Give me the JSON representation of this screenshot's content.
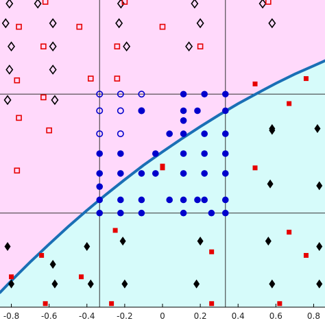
{
  "chart_data": {
    "type": "scatter",
    "xlim": [
      -0.86,
      0.86
    ],
    "ylim": [
      -0.86,
      0.86
    ],
    "x_ticks": [
      -0.8,
      -0.6,
      -0.4,
      -0.2,
      0,
      0.2,
      0.4,
      0.6,
      0.8
    ],
    "x_tick_labels": [
      "-0.8",
      "-0.6",
      "-0.4",
      "-0.2",
      "0",
      "0.2",
      "0.4",
      "0.6",
      "0.8"
    ],
    "grid_x": [
      -0.333,
      0.333
    ],
    "grid_y": [
      -0.333,
      0.333
    ],
    "grid": "partial",
    "colors": {
      "upper_region": "#ffd9fb",
      "lower_region": "#d6fbfa",
      "boundary": "#1a6fb5",
      "red": "#e60000",
      "blue": "#0000cc",
      "black": "#000000",
      "grid": "#333333"
    },
    "boundary": {
      "points": [
        [
          -0.86,
          -0.778
        ],
        [
          -0.8,
          -0.712
        ],
        [
          -0.7,
          -0.607
        ],
        [
          -0.6,
          -0.507
        ],
        [
          -0.5,
          -0.41
        ],
        [
          -0.4,
          -0.318
        ],
        [
          -0.3,
          -0.23
        ],
        [
          -0.2,
          -0.146
        ],
        [
          -0.1,
          -0.065
        ],
        [
          0,
          0.01
        ],
        [
          0.1,
          0.082
        ],
        [
          0.2,
          0.151
        ],
        [
          0.3,
          0.217
        ],
        [
          0.4,
          0.279
        ],
        [
          0.5,
          0.337
        ],
        [
          0.6,
          0.393
        ],
        [
          0.7,
          0.445
        ],
        [
          0.8,
          0.492
        ],
        [
          0.86,
          0.52
        ]
      ]
    },
    "series": [
      {
        "marker": "diamond-open",
        "color": "#000000",
        "points": [
          [
            -0.81,
            0.84
          ],
          [
            -0.83,
            0.73
          ],
          [
            -0.8,
            0.6
          ],
          [
            -0.81,
            0.47
          ],
          [
            -0.82,
            0.3
          ],
          [
            -0.66,
            0.84
          ],
          [
            -0.58,
            0.73
          ],
          [
            -0.58,
            0.6
          ],
          [
            -0.58,
            0.47
          ],
          [
            -0.57,
            0.3
          ],
          [
            -0.22,
            0.84
          ],
          [
            -0.23,
            0.73
          ],
          [
            -0.19,
            0.6
          ],
          [
            0.17,
            0.84
          ],
          [
            0.2,
            0.73
          ],
          [
            0.14,
            0.6
          ],
          [
            0.53,
            0.84
          ],
          [
            0.58,
            0.73
          ]
        ]
      },
      {
        "marker": "square-open",
        "color": "#e60000",
        "points": [
          [
            -0.76,
            0.71
          ],
          [
            -0.77,
            0.41
          ],
          [
            -0.76,
            0.2
          ],
          [
            -0.77,
            -0.095
          ],
          [
            -0.62,
            0.85
          ],
          [
            -0.63,
            0.6
          ],
          [
            -0.63,
            0.315
          ],
          [
            -0.6,
            0.13
          ],
          [
            -0.44,
            0.71
          ],
          [
            -0.38,
            0.42
          ],
          [
            -0.2,
            0.85
          ],
          [
            -0.24,
            0.6
          ],
          [
            -0.24,
            0.42
          ],
          [
            0,
            0.71
          ],
          [
            0.2,
            0.6
          ],
          [
            0.56,
            0.85
          ]
        ]
      },
      {
        "marker": "diamond-filled",
        "color": "#000000",
        "points": [
          [
            -0.82,
            -0.52
          ],
          [
            -0.8,
            -0.73
          ],
          [
            -0.58,
            -0.62
          ],
          [
            -0.57,
            -0.73
          ],
          [
            -0.4,
            -0.52
          ],
          [
            -0.38,
            -0.73
          ],
          [
            -0.21,
            -0.49
          ],
          [
            -0.2,
            -0.73
          ],
          [
            0.2,
            -0.49
          ],
          [
            0.18,
            -0.73
          ],
          [
            0.56,
            -0.49
          ],
          [
            0.58,
            -0.73
          ],
          [
            0.83,
            -0.52
          ],
          [
            0.83,
            -0.73
          ],
          [
            0.58,
            0.14
          ],
          [
            0.58,
            0.13
          ],
          [
            0.57,
            -0.17
          ],
          [
            0.82,
            0.14
          ],
          [
            0.83,
            -0.18
          ]
        ]
      },
      {
        "marker": "square-filled",
        "color": "#e60000",
        "points": [
          [
            -0.8,
            -0.69
          ],
          [
            -0.64,
            -0.57
          ],
          [
            -0.62,
            -0.84
          ],
          [
            -0.43,
            -0.69
          ],
          [
            -0.25,
            -0.43
          ],
          [
            -0.27,
            -0.84
          ],
          [
            0,
            -0.07
          ],
          [
            0,
            -0.08
          ],
          [
            0.26,
            -0.55
          ],
          [
            0.26,
            -0.84
          ],
          [
            0.49,
            -0.08
          ],
          [
            0.67,
            -0.44
          ],
          [
            0.62,
            -0.84
          ],
          [
            0.67,
            0.28
          ],
          [
            0.49,
            0.39
          ],
          [
            0.76,
            -0.57
          ],
          [
            0.76,
            0.42
          ]
        ]
      },
      {
        "marker": "circle-open",
        "color": "#0000cc",
        "points": [
          [
            -0.333,
            0.333
          ],
          [
            -0.333,
            0.24
          ],
          [
            -0.333,
            0.111
          ],
          [
            -0.222,
            0.333
          ],
          [
            -0.222,
            0.24
          ],
          [
            -0.222,
            0.111
          ],
          [
            -0.111,
            0.333
          ],
          [
            -0.111,
            0.24
          ]
        ]
      },
      {
        "marker": "circle-filled",
        "color": "#0000cc",
        "points": [
          [
            -0.333,
            0.0
          ],
          [
            -0.333,
            -0.111
          ],
          [
            -0.333,
            -0.185
          ],
          [
            -0.333,
            -0.259
          ],
          [
            -0.333,
            -0.333
          ],
          [
            -0.222,
            0.0
          ],
          [
            -0.222,
            -0.111
          ],
          [
            -0.222,
            -0.259
          ],
          [
            -0.222,
            -0.333
          ],
          [
            -0.111,
            0.24
          ],
          [
            -0.111,
            -0.111
          ],
          [
            -0.111,
            -0.333
          ],
          [
            -0.111,
            -0.259
          ],
          [
            -0.037,
            0.0
          ],
          [
            -0.037,
            -0.111
          ],
          [
            0.037,
            0.111
          ],
          [
            0.037,
            -0.259
          ],
          [
            0.111,
            0.333
          ],
          [
            0.111,
            0.24
          ],
          [
            0.111,
            0.185
          ],
          [
            0.111,
            0.111
          ],
          [
            0.111,
            0.0
          ],
          [
            0.111,
            -0.111
          ],
          [
            0.111,
            -0.259
          ],
          [
            0.111,
            -0.333
          ],
          [
            0.185,
            0.24
          ],
          [
            0.185,
            -0.259
          ],
          [
            0.222,
            0.333
          ],
          [
            0.222,
            0.111
          ],
          [
            0.222,
            0.0
          ],
          [
            0.222,
            -0.111
          ],
          [
            0.222,
            -0.259
          ],
          [
            0.259,
            -0.333
          ],
          [
            0.333,
            0.333
          ],
          [
            0.333,
            0.24
          ],
          [
            0.333,
            0.111
          ],
          [
            0.333,
            0.0
          ],
          [
            0.333,
            -0.111
          ],
          [
            0.333,
            -0.259
          ],
          [
            0.333,
            -0.333
          ]
        ]
      }
    ]
  }
}
